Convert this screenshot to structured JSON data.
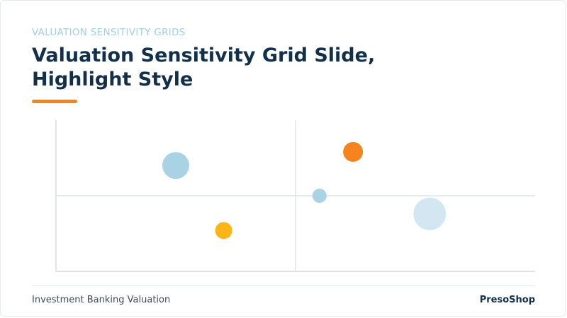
{
  "slide": {
    "kicker": "VALUATION SENSITIVITY GRIDS",
    "title_line1": "Valuation Sensitivity Grid Slide,",
    "title_line2": "Highlight Style",
    "footer_left": "Investment Banking Valuation",
    "footer_right": "PresoShop"
  },
  "colors": {
    "accent": "#f5841f",
    "light_blue": "#a9d3e5",
    "pale_blue": "#d2e7f1",
    "yellow": "#fdb515",
    "axis": "#dfe3e7"
  },
  "chart_data": {
    "type": "scatter",
    "xlim": [
      0,
      100
    ],
    "ylim": [
      0,
      100
    ],
    "grid": true,
    "points": [
      {
        "x": 25,
        "y": 70,
        "size": 19,
        "color": "#a9d3e5"
      },
      {
        "x": 35,
        "y": 27,
        "size": 12,
        "color": "#fdb515"
      },
      {
        "x": 55,
        "y": 50,
        "size": 10,
        "color": "#a9d3e5"
      },
      {
        "x": 62,
        "y": 79,
        "size": 14,
        "color": "#f5841f"
      },
      {
        "x": 78,
        "y": 38,
        "size": 23,
        "color": "#d2e7f1"
      }
    ]
  }
}
